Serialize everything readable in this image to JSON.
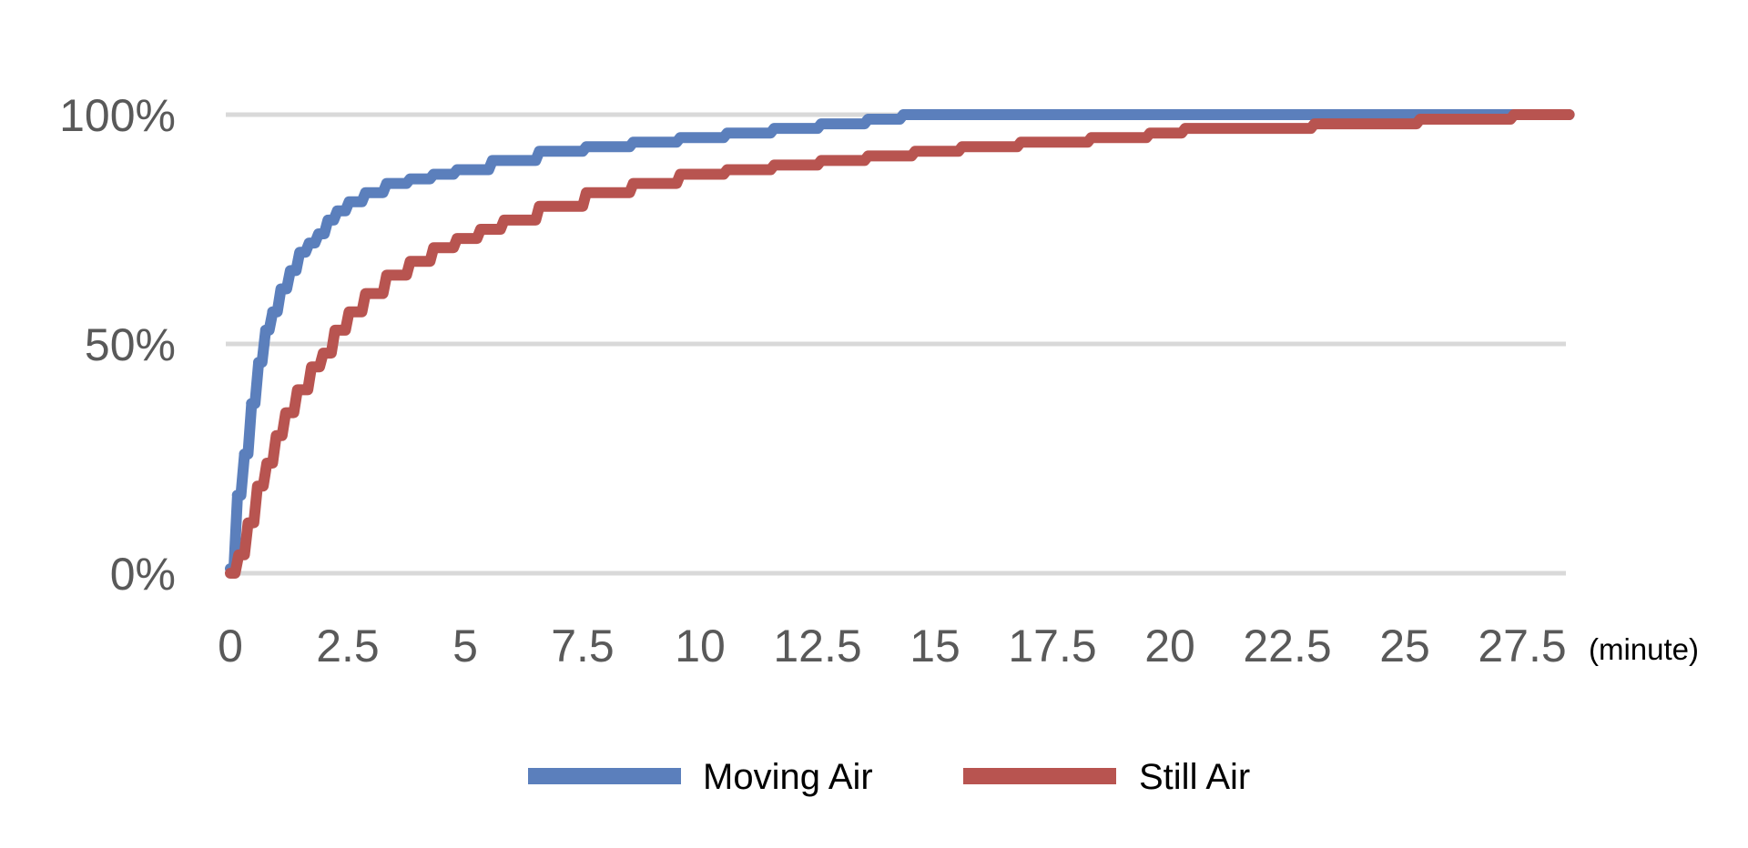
{
  "chart_data": {
    "type": "line",
    "title": "",
    "xlabel": "",
    "ylabel": "",
    "x_unit_label": "(minute)",
    "x_ticks": [
      "0",
      "2.5",
      "5",
      "7.5",
      "10",
      "12.5",
      "15",
      "17.5",
      "20",
      "22.5",
      "25",
      "27.5"
    ],
    "y_ticks": [
      "0%",
      "50%",
      "100%"
    ],
    "xlim": [
      0,
      28.5
    ],
    "ylim": [
      0,
      100
    ],
    "grid": true,
    "legend_position": "bottom",
    "series": [
      {
        "name": "Moving Air",
        "color": "#5b7fbc",
        "x": [
          0,
          0.15,
          0.3,
          0.45,
          0.6,
          0.75,
          0.9,
          1.1,
          1.3,
          1.5,
          1.7,
          1.9,
          2.1,
          2.3,
          2.6,
          3.0,
          3.5,
          4.0,
          4.5,
          5.0,
          6.0,
          7.0,
          8.0,
          9.0,
          10.0,
          11.0,
          12.0,
          13.0,
          14.0,
          14.5,
          16.0,
          18.0,
          20.0,
          22.0,
          24.0,
          26.0,
          28.0,
          28.5
        ],
        "y": [
          1,
          17,
          26,
          37,
          46,
          53,
          57,
          62,
          66,
          70,
          72,
          74,
          77,
          79,
          81,
          83,
          85,
          86,
          87,
          88,
          90,
          92,
          93,
          94,
          95,
          96,
          97,
          98,
          99,
          100,
          100,
          100,
          100,
          100,
          100,
          100,
          100,
          100
        ]
      },
      {
        "name": "Still Air",
        "color": "#b85450",
        "x": [
          0,
          0.2,
          0.4,
          0.6,
          0.8,
          1.0,
          1.2,
          1.5,
          1.8,
          2.0,
          2.3,
          2.6,
          3.0,
          3.5,
          4.0,
          4.5,
          5.0,
          5.5,
          6.0,
          7.0,
          8.0,
          9.0,
          10.0,
          11.0,
          12.0,
          13.0,
          14.0,
          15.0,
          16.0,
          17.5,
          19.0,
          20.0,
          20.5,
          22.0,
          24.0,
          24.5,
          26.0,
          27.0,
          27.5,
          28.5
        ],
        "y": [
          0,
          4,
          11,
          19,
          24,
          30,
          35,
          40,
          45,
          48,
          53,
          57,
          61,
          65,
          68,
          71,
          73,
          75,
          77,
          80,
          83,
          85,
          87,
          88,
          89,
          90,
          91,
          92,
          93,
          94,
          95,
          96,
          97,
          97,
          98,
          98,
          99,
          99,
          100,
          100
        ]
      }
    ]
  }
}
